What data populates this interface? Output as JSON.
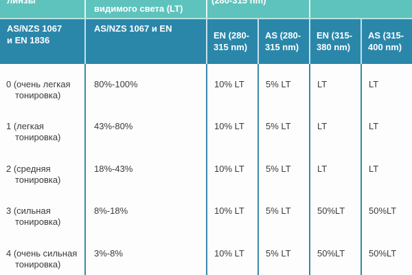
{
  "chart_data": {
    "type": "table",
    "title": "",
    "header_row_1": [
      "линзы",
      "видимого света (LT)",
      "(280-315 nm)",
      ""
    ],
    "header_row_2": [
      "AS/NZS 1067 и EN 1836",
      "AS/NZS 1067 и EN",
      "EN (280-315 nm)",
      "AS (280-315 nm)",
      "EN (315-380 nm)",
      "AS (315-400 nm)"
    ],
    "rows": [
      [
        "0 (очень легкая тонировка)",
        "80%-100%",
        "10% LT",
        "5% LT",
        "LT",
        "LT"
      ],
      [
        "1 (легкая тонировка)",
        "43%-80%",
        "10% LT",
        "5% LT",
        "LT",
        "LT"
      ],
      [
        "2 (средняя тонировка)",
        "18%-43%",
        "10% LT",
        "5% LT",
        "LT",
        "LT"
      ],
      [
        "3 (сильная тонировка)",
        "8%-18%",
        "10% LT",
        "5% LT",
        "50%LT",
        "50%LT"
      ],
      [
        "4 (очень сильная тонировка)",
        "3%-8%",
        "10% LT",
        "5% LT",
        "50%LT",
        "50%LT"
      ]
    ],
    "layout": {
      "grid": "vertical lines only in body",
      "legend_position": "none"
    }
  },
  "colors": {
    "header_light_teal": "#5fc3bd",
    "header_dark_teal": "#2a87aa",
    "body_grid_line": "#3787a7",
    "body_text": "#3a3a3a",
    "header_text": "#ffffff",
    "body_background": "#fdfdfd"
  }
}
